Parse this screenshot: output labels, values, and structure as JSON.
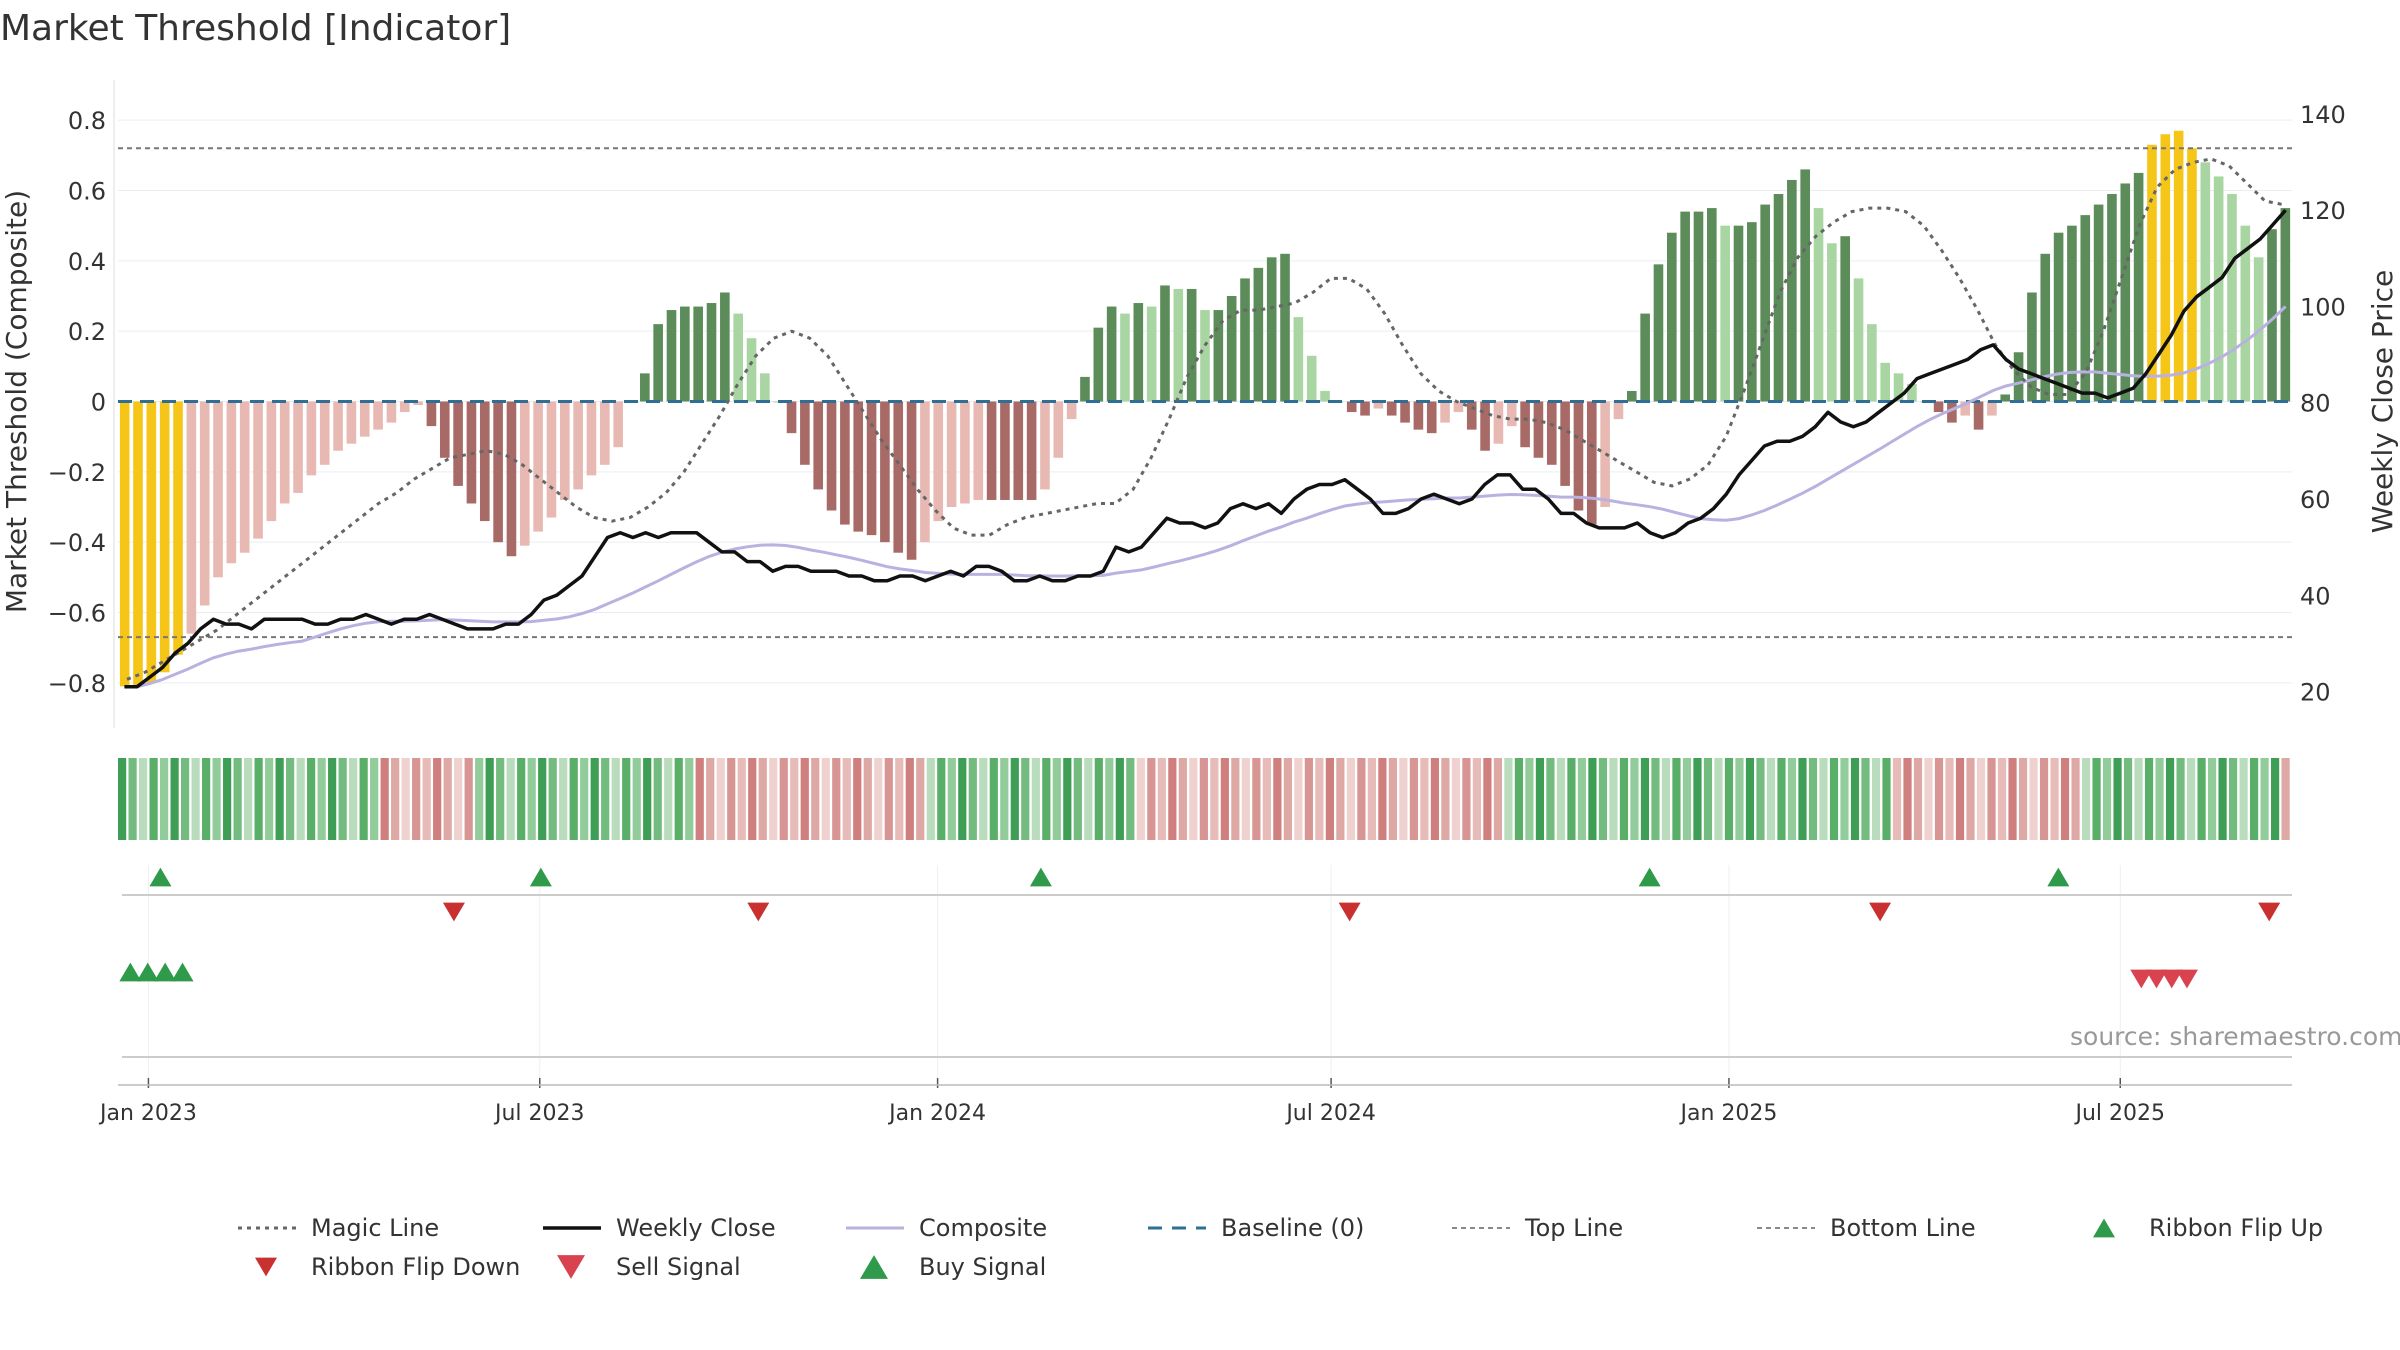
{
  "page": {
    "title": "Market Threshold [Indicator]",
    "source": "source: sharemaestro.com"
  },
  "colors": {
    "strong_green": "#5b8c5a",
    "light_green": "#a9d5a3",
    "strong_red": "#a86a66",
    "light_red": "#e8b9b3",
    "extreme": "#f5c518",
    "close": "#111111",
    "composite": "#b9b2e0",
    "magic": "#666666",
    "baseline": "#2f6f95",
    "flip_up": "#2e9a4a",
    "flip_down": "#c8312f",
    "sell": "#d9434f",
    "buy": "#2e9a4a"
  },
  "chart_data": {
    "type": "bar",
    "title": "Market Threshold [Indicator]",
    "ylabel": "Market Threshold (Composite)",
    "y2label": "Weekly Close Price",
    "ylim": [
      -0.9,
      0.9
    ],
    "y2lim": [
      14.5,
      146
    ],
    "yticks": [
      "0.8",
      "0.6",
      "0.4",
      "0.2",
      "0",
      "−0.2",
      "−0.4",
      "−0.6",
      "−0.8"
    ],
    "y2ticks": [
      "140",
      "120",
      "100",
      "80",
      "60",
      "40",
      "20"
    ],
    "xticks": [
      "Jan 2023",
      "Jul 2023",
      "Jan 2024",
      "Jul 2024",
      "Jan 2025",
      "Jul 2025"
    ],
    "top_line": 0.72,
    "bottom_line": -0.67,
    "legend": [
      "Magic Line",
      "Weekly Close",
      "Composite",
      "Baseline (0)",
      "Top Line",
      "Bottom Line",
      "Ribbon Flip Up",
      "Ribbon Flip Down",
      "Sell Signal",
      "Buy Signal"
    ],
    "legend_position": "bottom-center",
    "composite": [
      -0.81,
      -0.81,
      -0.8,
      -0.77,
      -0.72,
      -0.66,
      -0.58,
      -0.5,
      -0.46,
      -0.43,
      -0.39,
      -0.34,
      -0.29,
      -0.26,
      -0.21,
      -0.18,
      -0.14,
      -0.12,
      -0.1,
      -0.08,
      -0.06,
      -0.03,
      -0.01,
      -0.07,
      -0.16,
      -0.24,
      -0.29,
      -0.34,
      -0.4,
      -0.44,
      -0.41,
      -0.37,
      -0.33,
      -0.28,
      -0.25,
      -0.21,
      -0.18,
      -0.13,
      0.0,
      0.08,
      0.22,
      0.26,
      0.27,
      0.27,
      0.28,
      0.31,
      0.25,
      0.18,
      0.08,
      0.0,
      -0.09,
      -0.18,
      -0.25,
      -0.31,
      -0.35,
      -0.37,
      -0.38,
      -0.4,
      -0.43,
      -0.45,
      -0.4,
      -0.34,
      -0.3,
      -0.29,
      -0.28,
      -0.28,
      -0.28,
      -0.28,
      -0.28,
      -0.25,
      -0.16,
      -0.05,
      0.07,
      0.21,
      0.27,
      0.25,
      0.28,
      0.27,
      0.33,
      0.32,
      0.32,
      0.26,
      0.26,
      0.3,
      0.35,
      0.38,
      0.41,
      0.42,
      0.24,
      0.13,
      0.03,
      0.0,
      -0.03,
      -0.04,
      -0.02,
      -0.04,
      -0.06,
      -0.08,
      -0.09,
      -0.06,
      -0.03,
      -0.08,
      -0.14,
      -0.12,
      -0.07,
      -0.13,
      -0.16,
      -0.18,
      -0.24,
      -0.31,
      -0.35,
      -0.3,
      -0.05,
      0.03,
      0.25,
      0.39,
      0.48,
      0.54,
      0.54,
      0.55,
      0.5,
      0.5,
      0.51,
      0.56,
      0.59,
      0.63,
      0.66,
      0.55,
      0.45,
      0.47,
      0.35,
      0.22,
      0.11,
      0.08,
      0.05,
      0.0,
      -0.03,
      -0.06,
      -0.04,
      -0.08,
      -0.04,
      0.02,
      0.14,
      0.31,
      0.42,
      0.48,
      0.5,
      0.53,
      0.56,
      0.59,
      0.62,
      0.65,
      0.73,
      0.76,
      0.77,
      0.72,
      0.68,
      0.64,
      0.59,
      0.5,
      0.41,
      0.49,
      0.55
    ],
    "weekly_close": [
      21,
      21,
      23,
      25,
      28,
      30,
      33,
      35,
      34,
      34,
      33,
      35,
      35,
      35,
      35,
      34,
      34,
      35,
      35,
      36,
      35,
      34,
      35,
      35,
      36,
      35,
      34,
      33,
      33,
      33,
      34,
      34,
      36,
      39,
      40,
      42,
      44,
      48,
      52,
      53,
      52,
      53,
      52,
      53,
      53,
      53,
      51,
      49,
      49,
      47,
      47,
      45,
      46,
      46,
      45,
      45,
      45,
      44,
      44,
      43,
      43,
      44,
      44,
      43,
      44,
      45,
      44,
      46,
      46,
      45,
      43,
      43,
      44,
      43,
      43,
      44,
      44,
      45,
      50,
      49,
      50,
      53,
      56,
      55,
      55,
      54,
      55,
      58,
      59,
      58,
      59,
      57,
      60,
      62,
      63,
      63,
      64,
      62,
      60,
      57,
      57,
      58,
      60,
      61,
      60,
      59,
      60,
      63,
      65,
      65,
      62,
      62,
      60,
      57,
      57,
      55,
      54,
      54,
      54,
      55,
      53,
      52,
      53,
      55,
      56,
      58,
      61,
      65,
      68,
      71,
      72,
      72,
      73,
      75,
      78,
      76,
      75,
      76,
      78,
      80,
      82,
      85,
      86,
      87,
      88,
      89,
      91,
      92,
      89,
      87,
      86,
      85,
      84,
      83,
      82,
      82,
      81,
      82,
      83,
      86,
      90,
      94,
      99,
      102,
      104,
      106,
      110,
      112,
      114,
      117,
      120
    ],
    "magic_line": [
      -0.79,
      -0.77,
      -0.74,
      -0.71,
      -0.68,
      -0.65,
      -0.61,
      -0.57,
      -0.53,
      -0.49,
      -0.45,
      -0.41,
      -0.37,
      -0.33,
      -0.29,
      -0.26,
      -0.22,
      -0.19,
      -0.16,
      -0.15,
      -0.14,
      -0.15,
      -0.18,
      -0.22,
      -0.26,
      -0.3,
      -0.33,
      -0.34,
      -0.33,
      -0.3,
      -0.26,
      -0.2,
      -0.12,
      -0.04,
      0.05,
      0.13,
      0.18,
      0.2,
      0.18,
      0.13,
      0.05,
      -0.03,
      -0.11,
      -0.18,
      -0.25,
      -0.31,
      -0.36,
      -0.38,
      -0.38,
      -0.35,
      -0.33,
      -0.32,
      -0.31,
      -0.3,
      -0.29,
      -0.29,
      -0.25,
      -0.16,
      -0.05,
      0.07,
      0.16,
      0.23,
      0.26,
      0.26,
      0.27,
      0.28,
      0.31,
      0.35,
      0.35,
      0.32,
      0.25,
      0.16,
      0.08,
      0.03,
      0.0,
      -0.02,
      -0.04,
      -0.05,
      -0.05,
      -0.06,
      -0.08,
      -0.11,
      -0.14,
      -0.17,
      -0.2,
      -0.23,
      -0.24,
      -0.22,
      -0.18,
      -0.1,
      0.03,
      0.17,
      0.31,
      0.41,
      0.47,
      0.51,
      0.54,
      0.55,
      0.55,
      0.54,
      0.5,
      0.43,
      0.35,
      0.26,
      0.16,
      0.09,
      0.04,
      0.02,
      0.02,
      0.08,
      0.2,
      0.35,
      0.5,
      0.61,
      0.66,
      0.68,
      0.69,
      0.67,
      0.62,
      0.57,
      0.56
    ]
  },
  "ribbon": "111111111111111111111111100000000011111111111111111111100000000000000000000001111111111111111111100000000000000000000000000000000000111111111111111111111111111111111111100000000000000000011111111111111111110",
  "flip_up": [
    0.014,
    0.189,
    0.419,
    0.699,
    0.887
  ],
  "flip_down": [
    0.149,
    0.289,
    0.561,
    0.805,
    0.984
  ],
  "buy_signals": [
    0.002,
    0.01,
    0.018,
    0.026
  ],
  "sell_signals": [
    0.927,
    0.934,
    0.941,
    0.948
  ],
  "legend_items": [
    {
      "label": "Magic Line",
      "kind": "dotted"
    },
    {
      "label": "Weekly Close",
      "kind": "solid"
    },
    {
      "label": "Composite",
      "kind": "composite"
    },
    {
      "label": "Baseline (0)",
      "kind": "dashed"
    },
    {
      "label": "Top Line",
      "kind": "thin_dotted"
    },
    {
      "label": "Bottom Line",
      "kind": "thin_dotted"
    },
    {
      "label": "Ribbon Flip Up",
      "kind": "tri_up"
    },
    {
      "label": "Ribbon Flip Down",
      "kind": "tri_down"
    },
    {
      "label": "Sell Signal",
      "kind": "sell"
    },
    {
      "label": "Buy Signal",
      "kind": "buy"
    }
  ]
}
